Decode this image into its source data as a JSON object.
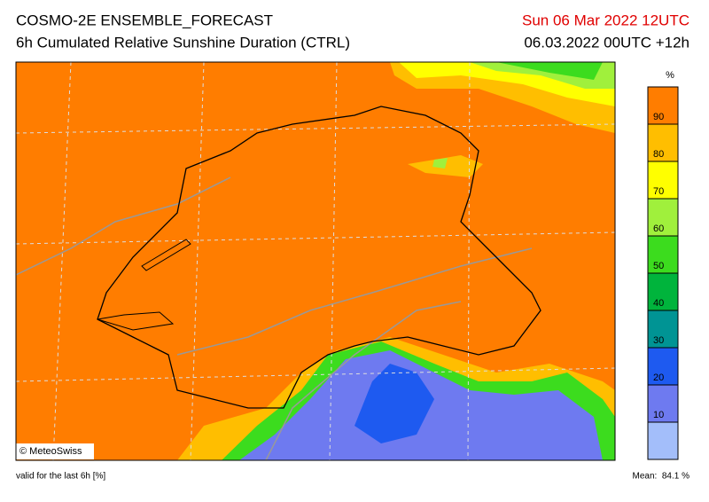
{
  "header": {
    "title": "COSMO-2E ENSEMBLE_FORECAST",
    "subtitle": "6h Cumulated Relative Sunshine Duration (CTRL)",
    "valid_date": "Sun 06 Mar 2022 12UTC",
    "run": "06.03.2022 00UTC +12h"
  },
  "map": {
    "credit": "© MeteoSwiss"
  },
  "legend": {
    "unit": "%",
    "ticks": [
      10,
      20,
      30,
      40,
      50,
      60,
      70,
      80,
      90
    ],
    "colors": [
      "#a3befa",
      "#6e7af0",
      "#1e5af0",
      "#009494",
      "#00b43c",
      "#3cdc1e",
      "#a0f03c",
      "#ffff00",
      "#ffbe00",
      "#ff7d00"
    ]
  },
  "footer": {
    "left": "valid for the last 6h [%]",
    "right": "Mean:  84.1 %"
  }
}
